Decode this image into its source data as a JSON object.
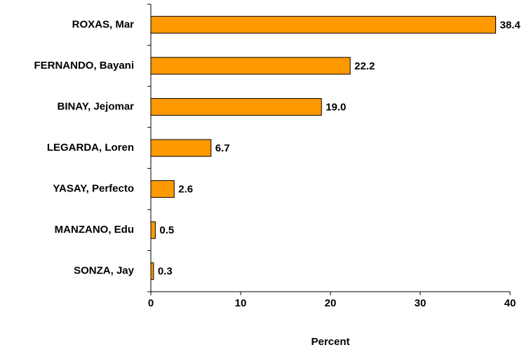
{
  "chart_data": {
    "type": "hbar",
    "categories": [
      "ROXAS, Mar",
      "FERNANDO, Bayani",
      "BINAY, Jejomar",
      "LEGARDA, Loren",
      "YASAY, Perfecto",
      "MANZANO, Edu",
      "SONZA, Jay"
    ],
    "values": [
      38.4,
      22.2,
      19.0,
      6.7,
      2.6,
      0.5,
      0.3
    ],
    "value_labels": [
      "38.4",
      "22.2",
      "19.0",
      "6.7",
      "2.6",
      "0.5",
      "0.3"
    ],
    "color": "#ff9900",
    "xlim": [
      0,
      40
    ],
    "xticks": [
      0,
      10,
      20,
      30,
      40
    ],
    "xlabel": "Percent"
  }
}
